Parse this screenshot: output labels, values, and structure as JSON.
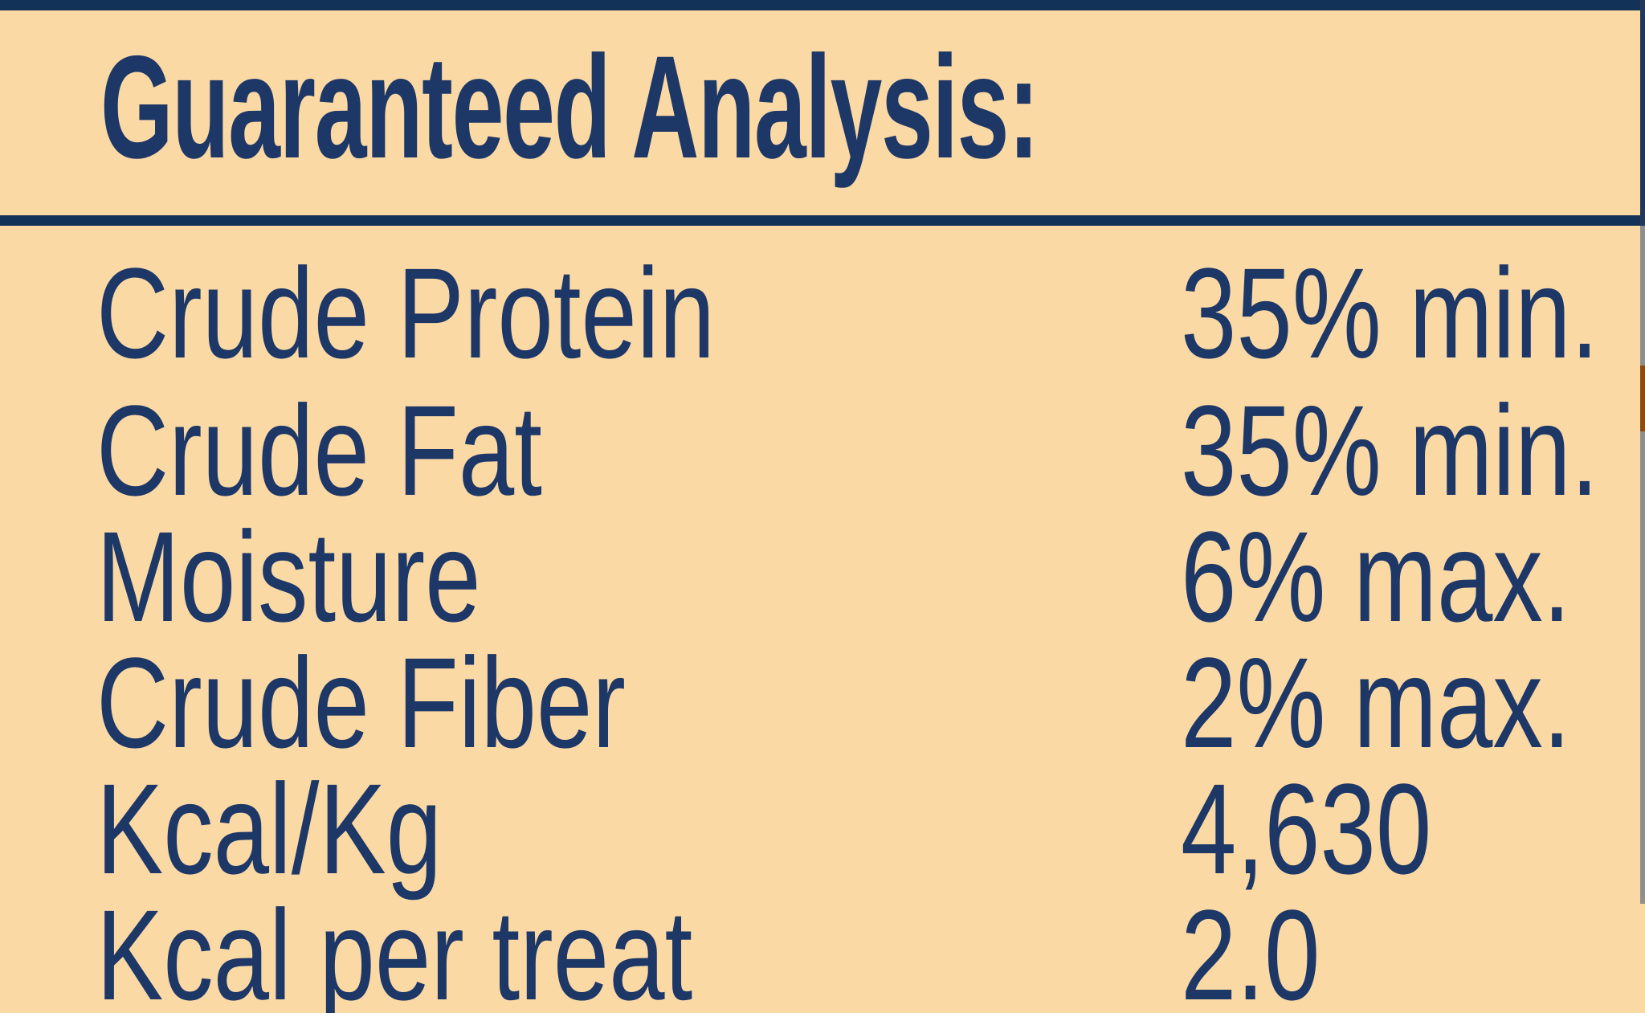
{
  "label": {
    "title": "Guaranteed Analysis:",
    "rows": [
      {
        "name": "Crude Protein",
        "value": "35% min."
      },
      {
        "name": "Crude Fat",
        "value": "35% min."
      },
      {
        "name": "Moisture",
        "value": "6% max."
      },
      {
        "name": "Crude Fiber",
        "value": "2% max."
      },
      {
        "name": "Kcal/Kg",
        "value": "4,630"
      },
      {
        "name": "Kcal per treat",
        "value": "2.0"
      }
    ],
    "colors": {
      "background": "#fbd9a5",
      "text_navy": "#1d3767",
      "bar_navy": "#133258",
      "edge_gray": "#8f8f8d",
      "edge_brown": "#8a4a16"
    }
  }
}
